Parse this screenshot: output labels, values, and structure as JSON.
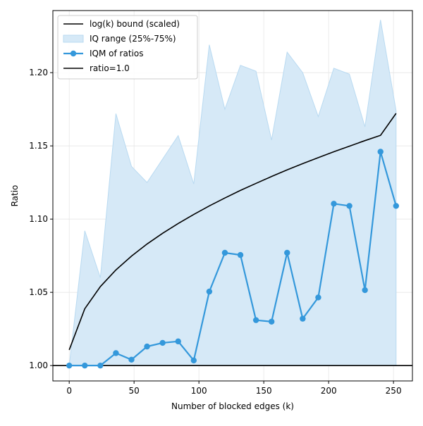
{
  "chart_data": {
    "type": "line",
    "title": "",
    "xlabel": "Number of blocked edges (k)",
    "ylabel": "Ratio",
    "xlim": [
      -12.6,
      264.6
    ],
    "ylim": [
      0.9895,
      1.2424
    ],
    "x_ticks": [
      0,
      50,
      100,
      150,
      200,
      250
    ],
    "x_tick_labels": [
      "0",
      "50",
      "100",
      "150",
      "200",
      "250"
    ],
    "y_ticks": [
      1.0,
      1.05,
      1.1,
      1.15,
      1.2
    ],
    "y_tick_labels": [
      "1.00",
      "1.05",
      "1.10",
      "1.15",
      "1.20"
    ],
    "grid": true,
    "legend_position": "top-left",
    "colors": {
      "iqm": "#3498db",
      "iq_fill": "#d6e9f7",
      "iq_edge": "#b9daf1",
      "bound": "#000000",
      "ratio_line": "#000000",
      "grid": "#e6e6e6",
      "axis": "#000000"
    },
    "legend": [
      {
        "label": "log(k) bound (scaled)",
        "kind": "line",
        "color": "#000000"
      },
      {
        "label": "IQ range (25%-75%)",
        "kind": "patch",
        "color": "#d6e9f7"
      },
      {
        "label": "IQM of ratios",
        "kind": "line-marker",
        "color": "#3498db"
      },
      {
        "label": "ratio=1.0",
        "kind": "line",
        "color": "#000000"
      }
    ],
    "x": [
      0,
      12,
      24,
      36,
      48,
      60,
      72,
      84,
      96,
      108,
      120,
      132,
      144,
      156,
      168,
      180,
      192,
      204,
      216,
      228,
      240,
      252
    ],
    "series": [
      {
        "name": "IQM of ratios",
        "values": [
          1.0,
          1.0,
          1.0,
          1.0085,
          1.004,
          1.013,
          1.0155,
          1.0165,
          1.0035,
          1.0505,
          1.077,
          1.0755,
          1.031,
          1.03,
          1.077,
          1.032,
          1.0465,
          1.1105,
          1.109,
          1.0515,
          1.146,
          1.109
        ]
      },
      {
        "name": "IQ range (25%-75%)",
        "lower": [
          1.0,
          1.0,
          1.0,
          1.0,
          1.0,
          1.0,
          1.0,
          1.0,
          1.0,
          1.0,
          1.0,
          1.0,
          1.0,
          1.0,
          1.0,
          1.0,
          1.0,
          1.0,
          1.0,
          1.0,
          1.0,
          1.0
        ],
        "upper": [
          1.0,
          1.092,
          1.06,
          1.172,
          1.136,
          1.125,
          1.141,
          1.157,
          1.124,
          1.219,
          1.175,
          1.205,
          1.201,
          1.154,
          1.214,
          1.2,
          1.17,
          1.203,
          1.199,
          1.163,
          1.236,
          1.174
        ]
      },
      {
        "name": "log(k) bound (scaled)",
        "x": [
          0,
          12,
          24,
          36,
          48,
          60,
          72,
          84,
          96,
          108,
          120,
          132,
          144,
          156,
          168,
          180,
          192,
          204,
          216,
          228,
          240,
          252
        ],
        "values": [
          1.0107,
          1.0388,
          1.0539,
          1.0653,
          1.0747,
          1.083,
          1.0903,
          1.097,
          1.1032,
          1.109,
          1.1144,
          1.1196,
          1.1244,
          1.1291,
          1.1336,
          1.1379,
          1.142,
          1.146,
          1.1498,
          1.1536,
          1.1572,
          1.1722
        ]
      },
      {
        "name": "ratio=1.0",
        "y": 1.0
      }
    ]
  }
}
